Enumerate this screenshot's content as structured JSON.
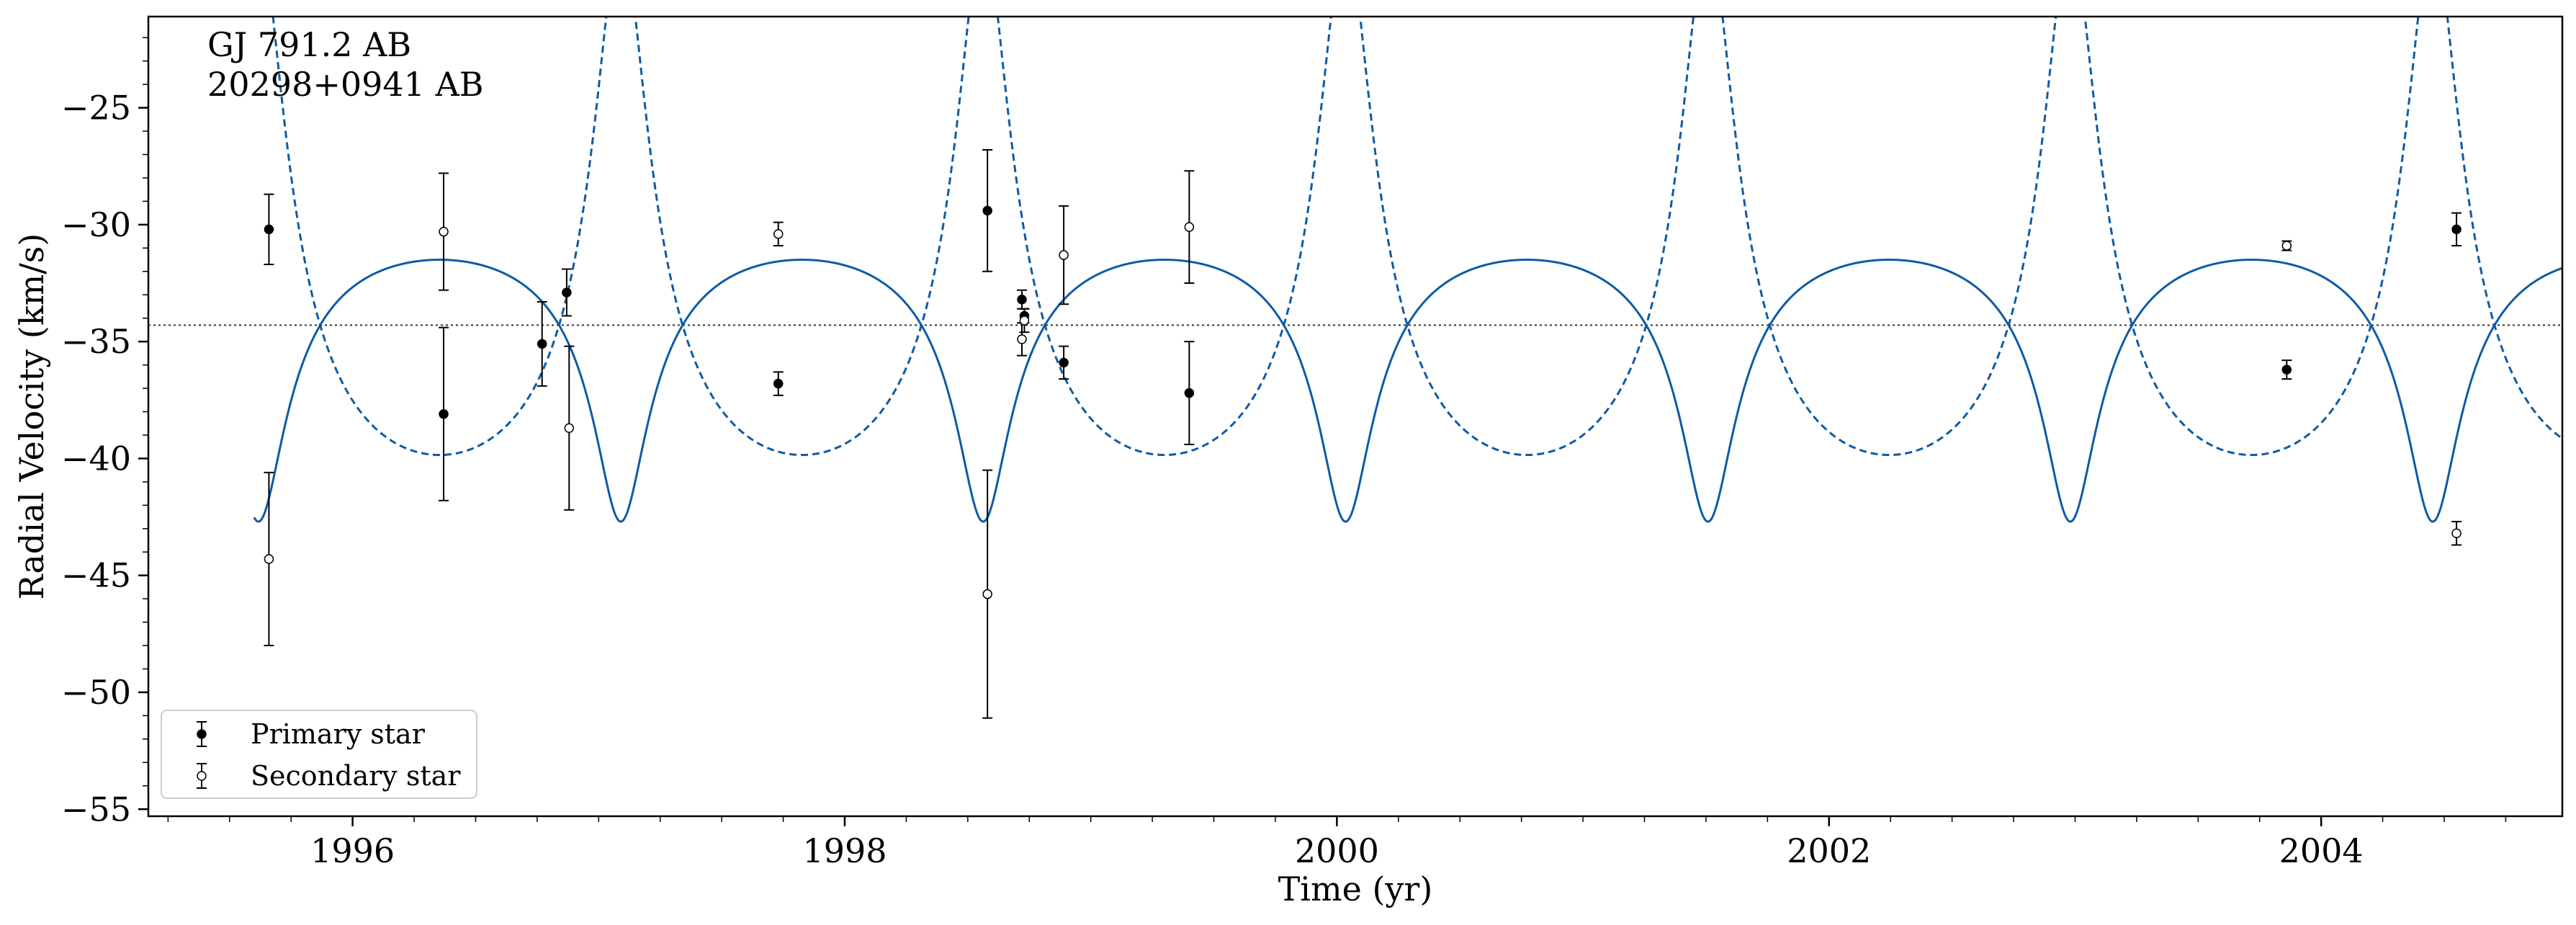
{
  "chart_data": {
    "type": "scatter",
    "title": "",
    "xlabel": "Time (yr)",
    "ylabel": "Radial Velocity  (km/s)",
    "xlim": [
      1995.17,
      2004.98
    ],
    "ylim": [
      -55.3,
      -21.1
    ],
    "xticks": [
      1996,
      1998,
      2000,
      2002,
      2004
    ],
    "xtick_labels": [
      "1996",
      "1998",
      "2000",
      "2002",
      "2004"
    ],
    "yticks": [
      -55,
      -50,
      -45,
      -40,
      -35,
      -30,
      -25
    ],
    "ytick_labels": [
      "−55",
      "−50",
      "−45",
      "−40",
      "−35",
      "−30",
      "−25"
    ],
    "grid": false,
    "legend_position": "lower-left",
    "annotations": [
      "GJ 791.2 AB",
      "20298+0941 AB"
    ],
    "systemic_velocity": -34.3,
    "orbit": {
      "period": 1.4727,
      "periastron_epoch": 1997.09,
      "eccentricity": 0.5,
      "omega_deg": 180,
      "K_primary": 5.6,
      "K_secondary": 11.1,
      "t_start": 1995.6,
      "colors": {
        "model": "#0d5ba6",
        "systemic": "#333333",
        "data": "#000000"
      }
    },
    "series": [
      {
        "name": "Primary star",
        "marker": "filled-circle",
        "x": [
          1995.66,
          1996.37,
          1996.77,
          1996.87,
          1997.73,
          1998.58,
          1998.72,
          1998.73,
          1998.89,
          1999.4,
          2003.86,
          2004.55
        ],
        "y": [
          -30.2,
          -38.1,
          -35.1,
          -32.9,
          -36.8,
          -29.4,
          -33.2,
          -33.9,
          -35.9,
          -37.2,
          -36.2,
          -30.2
        ],
        "yerr": [
          1.5,
          3.7,
          1.8,
          1.0,
          0.5,
          2.6,
          0.4,
          0.3,
          0.7,
          2.2,
          0.4,
          0.7
        ]
      },
      {
        "name": "Secondary star",
        "marker": "open-circle",
        "x": [
          1995.66,
          1996.37,
          1996.88,
          1997.73,
          1998.58,
          1998.72,
          1998.73,
          1998.89,
          1999.4,
          2003.86,
          2004.55
        ],
        "y": [
          -44.3,
          -30.3,
          -38.7,
          -30.4,
          -45.8,
          -34.9,
          -34.1,
          -31.3,
          -30.1,
          -30.9,
          -43.2
        ],
        "yerr": [
          3.7,
          2.5,
          3.5,
          0.5,
          5.3,
          0.7,
          0.5,
          2.1,
          2.4,
          0.2,
          0.5
        ]
      }
    ]
  }
}
